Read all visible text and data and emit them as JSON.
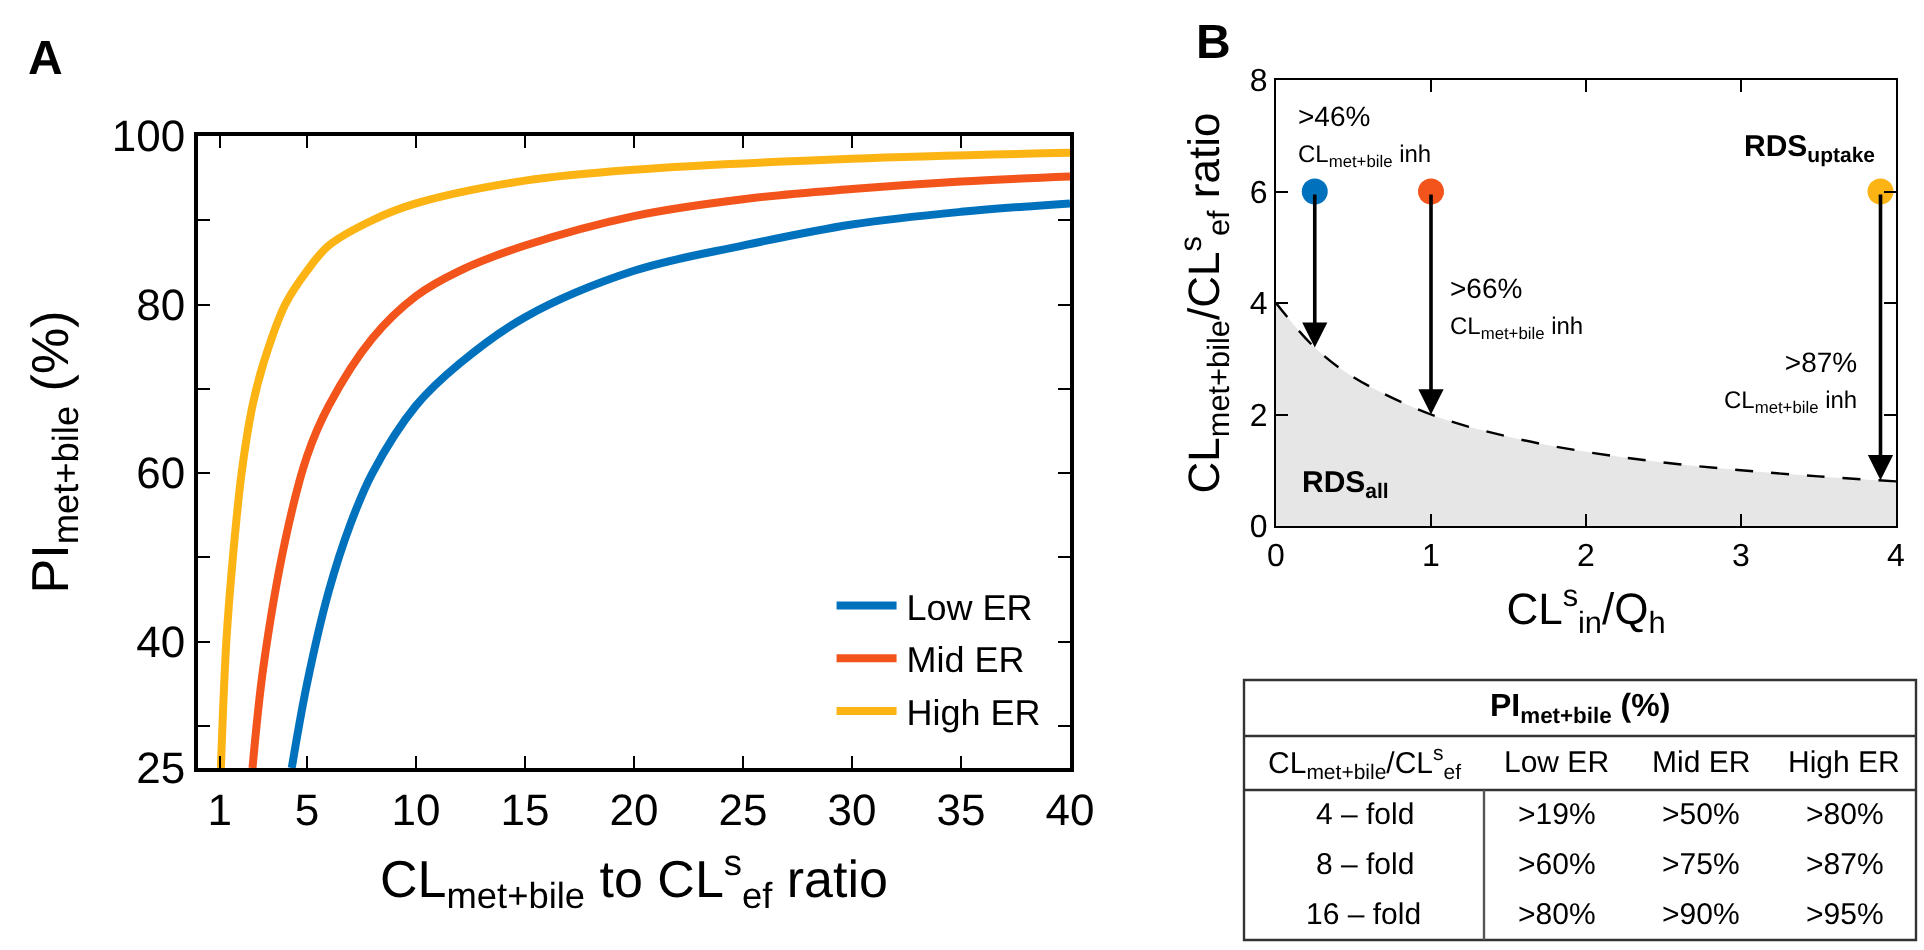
{
  "chart_data": [
    {
      "type": "line",
      "title": "A",
      "xlabel": "CL$_{met+bile}$ to CL$^{s}$$_{ef}$ ratio",
      "ylabel": "PI$_{met+bile}$ (%)",
      "xlim": [
        0,
        40
      ],
      "xticks": [
        1,
        5,
        10,
        15,
        20,
        25,
        30,
        35,
        40
      ],
      "ylim": [
        25,
        100
      ],
      "yticks": [
        25,
        {
          "value": 30,
          "label": null
        },
        40,
        {
          "value": 50,
          "label": null
        },
        60,
        {
          "value": 70,
          "label": null
        },
        80,
        {
          "value": 90,
          "label": null
        },
        100
      ],
      "legend": "bottom right",
      "series": [
        {
          "name": "Low ER",
          "color": "#0072bd",
          "x": [
            4.3,
            5,
            6,
            7,
            8,
            10,
            12,
            15,
            20,
            25,
            30,
            35,
            40
          ],
          "values": [
            25,
            35,
            46,
            54,
            60,
            68,
            73,
            78.5,
            84,
            87,
            89.5,
            91,
            92
          ]
        },
        {
          "name": "Mid ER",
          "color": "#f2541b",
          "x": [
            2.5,
            3,
            4,
            5,
            6,
            8,
            10,
            12,
            15,
            20,
            25,
            30,
            35,
            40
          ],
          "values": [
            25,
            37,
            52,
            62,
            68,
            76,
            81,
            84,
            87,
            90.5,
            92.5,
            93.7,
            94.6,
            95.2
          ]
        },
        {
          "name": "High ER",
          "color": "#fbb414",
          "x": [
            1.05,
            1.3,
            1.6,
            2,
            2.5,
            3,
            4,
            5,
            6,
            8,
            10,
            15,
            20,
            30,
            40
          ],
          "values": [
            25,
            40,
            50,
            60,
            68,
            73,
            80,
            84,
            87,
            90,
            92,
            94.7,
            96,
            97.3,
            98
          ]
        }
      ]
    },
    {
      "type": "scatter",
      "title": "B",
      "xlabel": "CL$^{s}$$_{in}$/Q$_{h}$",
      "ylabel": "CL$_{met+bile}$/CL$^{s}$$_{ef}$ ratio",
      "xlim": [
        0,
        4
      ],
      "xticks": [
        0,
        1,
        2,
        3,
        4
      ],
      "ylim": [
        0,
        8
      ],
      "yticks": [
        0,
        2,
        4,
        6,
        8
      ],
      "series": [
        {
          "type": "area",
          "color": "#e6e6e6",
          "line_style": "dashed",
          "x": [
            0,
            0.25,
            0.5,
            1,
            1.5,
            2,
            2.5,
            3,
            3.5,
            4
          ],
          "values": [
            4,
            3.2,
            2.67,
            2,
            1.6,
            1.33,
            1.14,
            1.0,
            0.89,
            0.8
          ]
        },
        {
          "type": "scatter",
          "marker": "circle",
          "x": [
            0.25,
            1,
            3.9
          ],
          "values": [
            6,
            6,
            6
          ],
          "colors": [
            "#0072bd",
            "#f2541b",
            "#fbb414"
          ]
        }
      ],
      "annotations": [
        {
          "text": ">46%\nCL$_{met+bile}$ inh",
          "x": 0.25,
          "y": 3.2
        },
        {
          "text": ">66%\nCL$_{met+bile}$ inh",
          "x": 1,
          "y": 2.0
        },
        {
          "text": ">87%\nCL$_{met+bile}$ inh",
          "x": 3.9,
          "y": 0.82
        },
        "RDS$_{uptake}$",
        "RDS$_{all}$"
      ]
    },
    {
      "type": "other",
      "title": "PI$_{met+bile}$ (%)",
      "ylabel": "CL$_{met+bile}$/CL$^{s}$$_{ef}$",
      "categories": [
        "Low ER",
        "Mid ER",
        "High ER"
      ],
      "y_categories": [
        "4 – fold",
        "8 – fold",
        "16 – fold"
      ],
      "cell_labels": [
        [
          ">19%",
          ">50%",
          ">80%"
        ],
        [
          ">60%",
          ">75%",
          ">87%"
        ],
        [
          ">80%",
          ">90%",
          ">95%"
        ]
      ]
    }
  ]
}
